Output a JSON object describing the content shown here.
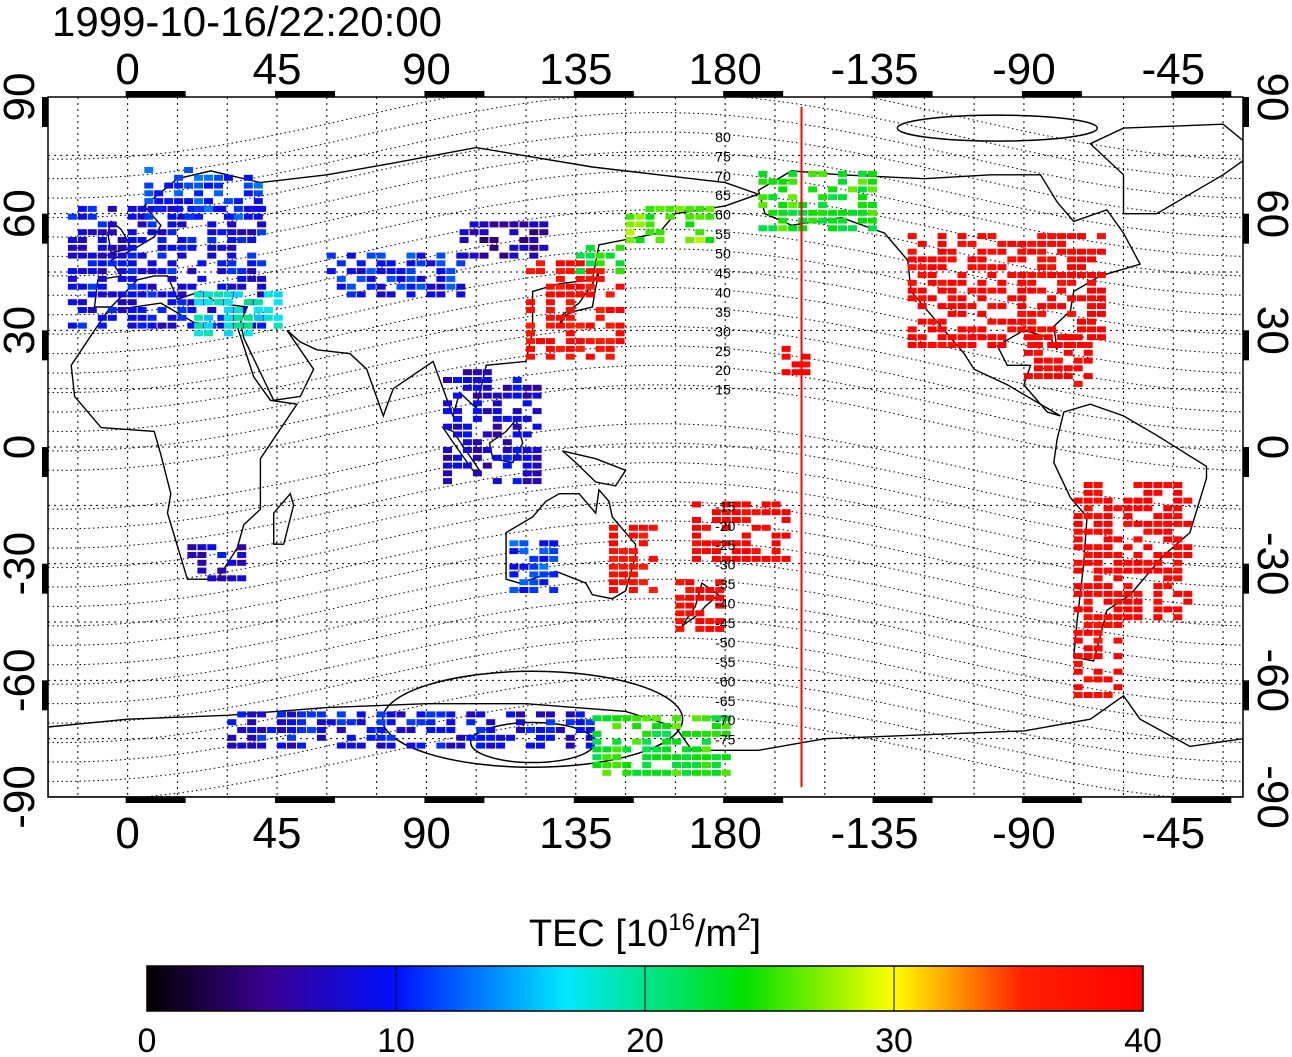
{
  "title": "1999-10-16/22:20:00",
  "map": {
    "lon_ticks": [
      "0",
      "45",
      "90",
      "135",
      "180",
      "-135",
      "-90",
      "-45"
    ],
    "lon_tick_values": [
      0,
      45,
      90,
      135,
      180,
      225,
      270,
      315
    ],
    "lat_ticks": [
      "90",
      "60",
      "30",
      "0",
      "-30",
      "-60",
      "-90"
    ],
    "lat_tick_values": [
      90,
      60,
      30,
      0,
      -30,
      -60,
      -90
    ],
    "lon_range": [
      -24,
      336
    ],
    "lat_range": [
      -90,
      90
    ],
    "terminator_lon": 203,
    "contour_labels_north": [
      "80",
      "75",
      "70",
      "65",
      "60",
      "55",
      "50",
      "45",
      "40",
      "35",
      "30",
      "25",
      "20",
      "15"
    ],
    "contour_label_north_lat": [
      80,
      75,
      70,
      65,
      60,
      55,
      50,
      45,
      40,
      35,
      30,
      25,
      20,
      15
    ],
    "contour_labels_south": [
      "-15",
      "-20",
      "-25",
      "-30",
      "-35",
      "-40",
      "-45",
      "-50",
      "-55",
      "-60",
      "-65",
      "-70",
      "-75"
    ],
    "contour_label_south_lat": [
      -15,
      -20,
      -25,
      -30,
      -35,
      -40,
      -45,
      -50,
      -55,
      -60,
      -65,
      -70,
      -75
    ],
    "contour_label_lon": 180,
    "coastline_color": "#000000",
    "terminator_color": "#ff0000",
    "tec_regions": [
      {
        "name": "europe",
        "lon": [
          -18,
          40
        ],
        "lat": [
          30,
          62
        ],
        "tec": 9
      },
      {
        "name": "scandinavia",
        "lon": [
          5,
          40
        ],
        "lat": [
          58,
          72
        ],
        "tec": 11
      },
      {
        "name": "europe-south-edge",
        "lon": [
          20,
          45
        ],
        "lat": [
          28,
          40
        ],
        "tec": 18
      },
      {
        "name": "central-asia",
        "lon": [
          60,
          100
        ],
        "lat": [
          38,
          50
        ],
        "tec": 10
      },
      {
        "name": "siberia",
        "lon": [
          100,
          125
        ],
        "lat": [
          48,
          58
        ],
        "tec": 6
      },
      {
        "name": "japan-china",
        "lon": [
          120,
          150
        ],
        "lat": [
          22,
          48
        ],
        "tec": 38
      },
      {
        "name": "korea-north",
        "lon": [
          135,
          150
        ],
        "lat": [
          44,
          52
        ],
        "tec": 24
      },
      {
        "name": "kamchatka",
        "lon": [
          150,
          175
        ],
        "lat": [
          52,
          62
        ],
        "tec": 26
      },
      {
        "name": "alaska",
        "lon": [
          190,
          225
        ],
        "lat": [
          55,
          70
        ],
        "tec": 24
      },
      {
        "name": "north-america",
        "lon": [
          235,
          295
        ],
        "lat": [
          25,
          55
        ],
        "tec": 40
      },
      {
        "name": "caribbean",
        "lon": [
          270,
          290
        ],
        "lat": [
          15,
          28
        ],
        "tec": 40
      },
      {
        "name": "hawaii",
        "lon": [
          197,
          205
        ],
        "lat": [
          18,
          25
        ],
        "tec": 40
      },
      {
        "name": "south-america",
        "lon": [
          285,
          320
        ],
        "lat": [
          -45,
          -10
        ],
        "tec": 40
      },
      {
        "name": "patagonia",
        "lon": [
          285,
          300
        ],
        "lat": [
          -65,
          -45
        ],
        "tec": 39
      },
      {
        "name": "australia-east",
        "lon": [
          145,
          160
        ],
        "lat": [
          -38,
          -20
        ],
        "tec": 38
      },
      {
        "name": "new-zealand",
        "lon": [
          165,
          178
        ],
        "lat": [
          -48,
          -35
        ],
        "tec": 39
      },
      {
        "name": "pacific-islands",
        "lon": [
          170,
          200
        ],
        "lat": [
          -30,
          -15
        ],
        "tec": 40
      },
      {
        "name": "southeast-asia",
        "lon": [
          95,
          125
        ],
        "lat": [
          -10,
          20
        ],
        "tec": 8
      },
      {
        "name": "australia-west",
        "lon": [
          115,
          130
        ],
        "lat": [
          -38,
          -25
        ],
        "tec": 11
      },
      {
        "name": "south-africa",
        "lon": [
          18,
          35
        ],
        "lat": [
          -35,
          -25
        ],
        "tec": 8
      },
      {
        "name": "antarctic-coast",
        "lon": [
          30,
          140
        ],
        "lat": [
          -78,
          -68
        ],
        "tec": 9
      },
      {
        "name": "antarctic-east",
        "lon": [
          140,
          180
        ],
        "lat": [
          -85,
          -70
        ],
        "tec": 24
      }
    ]
  },
  "colorbar": {
    "label": "TEC  [10",
    "label_sup": "16",
    "label_mid": "/m",
    "label_sup2": "2",
    "label_end": "]",
    "tick_labels": [
      "0",
      "10",
      "20",
      "30",
      "40"
    ],
    "tick_values": [
      0,
      10,
      20,
      30,
      40
    ],
    "range": [
      0,
      40
    ],
    "color_stops": [
      "#000000",
      "#3a0090",
      "#0010ff",
      "#00e8ff",
      "#00e000",
      "#ffff00",
      "#ff2000",
      "#ff0000"
    ]
  }
}
